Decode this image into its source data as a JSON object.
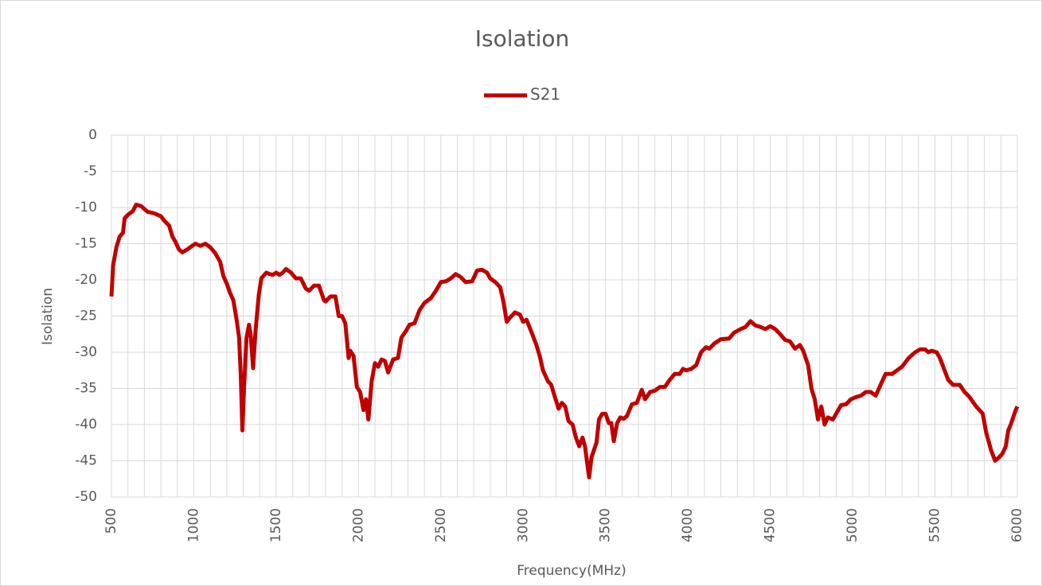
{
  "chart_data": {
    "type": "line",
    "title": "Isolation",
    "xlabel": "Frequency(MHz)",
    "ylabel": "Isolation",
    "xlim": [
      500,
      6000
    ],
    "xticks": [
      500,
      1000,
      1500,
      2000,
      2500,
      3000,
      3500,
      4000,
      4500,
      5000,
      5500,
      6000
    ],
    "xgrid": [
      500,
      600,
      700,
      800,
      900,
      1000,
      1100,
      1200,
      1300,
      1400,
      1500,
      1600,
      1700,
      1800,
      1900,
      2000,
      2100,
      2200,
      2300,
      2400,
      2500,
      2600,
      2700,
      2800,
      2900,
      3000,
      3100,
      3200,
      3300,
      3400,
      3500,
      3600,
      3700,
      3800,
      3900,
      4000,
      4100,
      4200,
      4300,
      4400,
      4500,
      4600,
      4700,
      4800,
      4900,
      5000,
      5100,
      5200,
      5300,
      5400,
      5500,
      5600,
      5700,
      5800,
      5900,
      6000
    ],
    "ylim": [
      -50,
      0
    ],
    "yticks": [
      0,
      -5,
      -10,
      -15,
      -20,
      -25,
      -30,
      -35,
      -40,
      -45,
      -50
    ],
    "grid": true,
    "legend": "top",
    "x": [
      500,
      510,
      530,
      550,
      570,
      580,
      600,
      630,
      650,
      680,
      700,
      720,
      760,
      800,
      820,
      850,
      870,
      890,
      910,
      930,
      960,
      990,
      1010,
      1040,
      1070,
      1100,
      1130,
      1160,
      1180,
      1200,
      1220,
      1240,
      1260,
      1275,
      1285,
      1295,
      1305,
      1320,
      1335,
      1345,
      1360,
      1375,
      1395,
      1410,
      1440,
      1460,
      1480,
      1500,
      1520,
      1540,
      1560,
      1590,
      1620,
      1650,
      1680,
      1700,
      1730,
      1760,
      1790,
      1800,
      1830,
      1860,
      1880,
      1900,
      1920,
      1940,
      1950,
      1970,
      1990,
      2010,
      2030,
      2045,
      2060,
      2080,
      2100,
      2120,
      2140,
      2160,
      2180,
      2210,
      2240,
      2260,
      2290,
      2310,
      2340,
      2370,
      2400,
      2440,
      2470,
      2500,
      2530,
      2560,
      2590,
      2620,
      2650,
      2690,
      2720,
      2750,
      2780,
      2800,
      2830,
      2860,
      2880,
      2900,
      2920,
      2950,
      2980,
      3000,
      3020,
      3050,
      3080,
      3100,
      3120,
      3150,
      3170,
      3190,
      3215,
      3235,
      3255,
      3275,
      3300,
      3320,
      3340,
      3360,
      3375,
      3400,
      3415,
      3430,
      3445,
      3460,
      3480,
      3500,
      3520,
      3535,
      3550,
      3570,
      3590,
      3610,
      3630,
      3660,
      3690,
      3720,
      3740,
      3770,
      3800,
      3830,
      3860,
      3890,
      3920,
      3950,
      3970,
      3990,
      4020,
      4050,
      4080,
      4110,
      4130,
      4160,
      4200,
      4250,
      4280,
      4320,
      4350,
      4380,
      4410,
      4440,
      4470,
      4500,
      4530,
      4560,
      4590,
      4620,
      4650,
      4680,
      4700,
      4730,
      4750,
      4770,
      4790,
      4810,
      4830,
      4850,
      4880,
      4900,
      4930,
      4960,
      4990,
      5020,
      5050,
      5080,
      5110,
      5140,
      5170,
      5200,
      5240,
      5270,
      5300,
      5340,
      5380,
      5410,
      5440,
      5460,
      5480,
      5510,
      5530,
      5550,
      5580,
      5610,
      5650,
      5680,
      5710,
      5750,
      5790,
      5810,
      5840,
      5865,
      5890,
      5910,
      5930,
      5945,
      5960,
      5975,
      5990,
      6000
    ],
    "series": [
      {
        "name": "S21",
        "color": "#c00000",
        "values": [
          -22.3,
          -18,
          -15.5,
          -14,
          -13.5,
          -11.5,
          -11,
          -10.5,
          -9.6,
          -9.8,
          -10.2,
          -10.6,
          -10.8,
          -11.2,
          -11.8,
          -12.5,
          -14,
          -14.8,
          -15.8,
          -16.2,
          -15.8,
          -15.3,
          -15,
          -15.3,
          -15,
          -15.5,
          -16.3,
          -17.5,
          -19.5,
          -20.5,
          -21.8,
          -22.8,
          -25.5,
          -28,
          -33,
          -40.8,
          -35,
          -28,
          -26.2,
          -27.5,
          -32.2,
          -27,
          -22,
          -19.8,
          -19,
          -19.2,
          -19.3,
          -19,
          -19.3,
          -19,
          -18.5,
          -19,
          -19.8,
          -19.8,
          -21.2,
          -21.5,
          -20.8,
          -20.8,
          -22.8,
          -23,
          -22.3,
          -22.3,
          -25,
          -25,
          -26,
          -30.8,
          -29.8,
          -30.5,
          -34.8,
          -35.5,
          -38,
          -36.5,
          -39.3,
          -34,
          -31.5,
          -32,
          -31,
          -31.2,
          -32.8,
          -31,
          -30.8,
          -28,
          -27,
          -26.2,
          -26,
          -24.2,
          -23.2,
          -22.5,
          -21.5,
          -20.3,
          -20.2,
          -19.8,
          -19.2,
          -19.6,
          -20.3,
          -20.2,
          -18.7,
          -18.6,
          -19,
          -19.8,
          -20.3,
          -21,
          -23,
          -25.8,
          -25.2,
          -24.5,
          -24.8,
          -25.8,
          -25.5,
          -27.2,
          -29,
          -30.5,
          -32.5,
          -34,
          -34.5,
          -36,
          -37.8,
          -37,
          -37.5,
          -39.5,
          -40,
          -41.8,
          -43,
          -41.8,
          -43,
          -47.3,
          -44.5,
          -43.5,
          -42.5,
          -39.3,
          -38.5,
          -38.5,
          -39.8,
          -39.8,
          -42.3,
          -39.8,
          -39,
          -39.2,
          -38.8,
          -37.2,
          -37,
          -35.2,
          -36.5,
          -35.5,
          -35.3,
          -34.8,
          -34.8,
          -33.8,
          -33,
          -33,
          -32.3,
          -32.5,
          -32.3,
          -31.8,
          -30,
          -29.3,
          -29.5,
          -28.8,
          -28.2,
          -28.1,
          -27.3,
          -26.8,
          -26.5,
          -25.7,
          -26.3,
          -26.5,
          -26.8,
          -26.4,
          -26.8,
          -27.5,
          -28.3,
          -28.5,
          -29.5,
          -29,
          -29.8,
          -31.8,
          -35,
          -36.5,
          -39.3,
          -37.5,
          -40,
          -39,
          -39.3,
          -38.5,
          -37.3,
          -37.2,
          -36.5,
          -36.2,
          -36,
          -35.5,
          -35.5,
          -36,
          -34.5,
          -33,
          -33,
          -32.5,
          -32,
          -30.8,
          -30,
          -29.6,
          -29.6,
          -30,
          -29.8,
          -30,
          -30.8,
          -32,
          -33.8,
          -34.5,
          -34.5,
          -35.5,
          -36.2,
          -37.5,
          -38.5,
          -41,
          -43.5,
          -45,
          -44.5,
          -44,
          -43,
          -40.8,
          -40,
          -39,
          -38,
          -37.5
        ]
      }
    ]
  }
}
